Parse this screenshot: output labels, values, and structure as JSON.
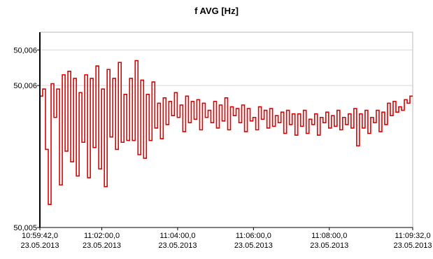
{
  "chart_data": {
    "type": "line",
    "title": "f AVG [Hz]",
    "xlabel": "",
    "ylabel": "",
    "grid": true,
    "y_ticks": [
      {
        "value": 50.006,
        "label": "50,006"
      },
      {
        "value": 50.0058,
        "label": "50,006"
      },
      {
        "value": 50.005,
        "label": "50,005"
      }
    ],
    "ylim": [
      50.005,
      50.0061
    ],
    "x_range_seconds": [
      0,
      590
    ],
    "x_ticks": [
      {
        "t": 0,
        "time": "10:59:42,0",
        "date": "23.05.2013"
      },
      {
        "t": 98,
        "time": "11:02:00,0",
        "date": "23.05.2013"
      },
      {
        "t": 218,
        "time": "11:04:00,0",
        "date": "23.05.2013"
      },
      {
        "t": 338,
        "time": "11:06:00,0",
        "date": "23.05.2013"
      },
      {
        "t": 458,
        "time": "11:08:00,0",
        "date": "23.05.2013"
      },
      {
        "t": 590,
        "time": "11:09:32,0",
        "date": "23.05.2013"
      }
    ],
    "series": [
      {
        "color": "#e00000",
        "values": [
          50.00574,
          50.00578,
          50.00544,
          50.00513,
          50.00581,
          50.00562,
          50.00578,
          50.00524,
          50.00586,
          50.00543,
          50.00588,
          50.00537,
          50.00584,
          50.00529,
          50.00576,
          50.00548,
          50.00586,
          50.00528,
          50.00584,
          50.00545,
          50.00591,
          50.00533,
          50.00578,
          50.00523,
          50.00589,
          50.00551,
          50.00584,
          50.00544,
          50.00593,
          50.00548,
          50.00575,
          50.00549,
          50.00584,
          50.00549,
          50.00594,
          50.00541,
          50.00583,
          50.00539,
          50.00575,
          50.00549,
          50.00582,
          50.00556,
          50.0057,
          50.0055,
          50.00573,
          50.00558,
          50.00571,
          50.00563,
          50.00576,
          50.00562,
          50.00569,
          50.00554,
          50.00574,
          50.00559,
          50.00571,
          50.00561,
          50.00572,
          50.00555,
          50.0057,
          50.00562,
          50.00566,
          50.00559,
          50.00571,
          50.00556,
          50.00569,
          50.0056,
          50.00573,
          50.00555,
          50.00568,
          50.00563,
          50.00567,
          50.00559,
          50.00569,
          50.00554,
          50.00567,
          50.0056,
          50.00562,
          50.00555,
          50.00568,
          50.00561,
          50.00566,
          50.00556,
          50.00567,
          50.00557,
          50.00563,
          50.00559,
          50.00565,
          50.00553,
          50.00566,
          50.00558,
          50.00564,
          50.00552,
          50.00564,
          50.00557,
          50.00566,
          50.00553,
          50.00561,
          50.00558,
          50.00564,
          50.00552,
          50.00562,
          50.00559,
          50.00565,
          50.00556,
          50.00563,
          50.00557,
          50.00566,
          50.00555,
          50.00562,
          50.00558,
          50.00564,
          50.00556,
          50.00567,
          50.00546,
          50.00564,
          50.00556,
          50.00566,
          50.00553,
          50.00562,
          50.00559,
          50.00566,
          50.00554,
          50.00565,
          50.00558,
          50.0057,
          50.00563,
          50.00571,
          50.00565,
          50.00568,
          50.00566,
          50.00572,
          50.0057,
          50.00574
        ]
      }
    ]
  }
}
